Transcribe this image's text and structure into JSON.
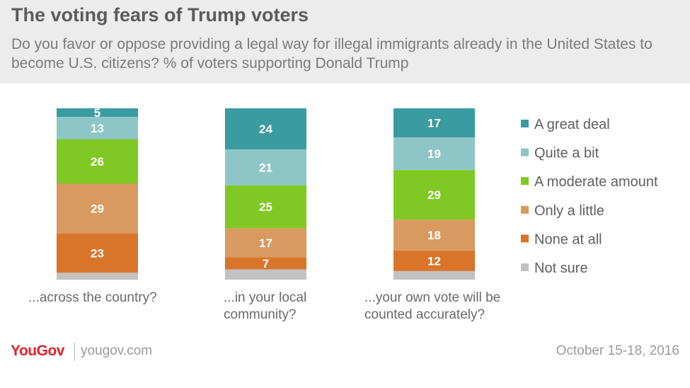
{
  "title": "The voting fears of Trump voters",
  "subtitle": "Do you favor or oppose providing a legal way for illegal immigrants already in the United States to become U.S. citizens? % of voters supporting Donald Trump",
  "colors": {
    "A great deal": "#3a9ba0",
    "Quite a bit": "#8ec6c8",
    "A moderate amount": "#80c824",
    "Only a little": "#d99a5f",
    "None at all": "#d9752a",
    "Not sure": "#c2c2c2"
  },
  "chart_data": {
    "type": "bar",
    "stacked": true,
    "categories": [
      "...across the country?",
      "...in your local community?",
      "...your own vote will be counted accurately?"
    ],
    "series": [
      {
        "name": "A great deal",
        "values": [
          5,
          24,
          17
        ]
      },
      {
        "name": "Quite a bit",
        "values": [
          13,
          21,
          19
        ]
      },
      {
        "name": "A moderate amount",
        "values": [
          26,
          25,
          29
        ]
      },
      {
        "name": "Only a little",
        "values": [
          29,
          17,
          18
        ]
      },
      {
        "name": "None at all",
        "values": [
          23,
          7,
          12
        ]
      },
      {
        "name": "Not sure",
        "values": [
          4,
          6,
          5
        ]
      }
    ],
    "data_labels": [
      [
        "5",
        "24",
        "17"
      ],
      [
        "13",
        "21",
        "19"
      ],
      [
        "26",
        "25",
        "29"
      ],
      [
        "29",
        "17",
        "18"
      ],
      [
        "23",
        "7",
        "12"
      ],
      [
        "",
        "",
        ""
      ]
    ],
    "legend_position": "right",
    "ylim": [
      0,
      100
    ]
  },
  "categories_display": [
    {
      "lines": [
        "...across the country?"
      ]
    },
    {
      "lines": [
        "...in your local",
        "community?"
      ]
    },
    {
      "lines": [
        "...your own vote will be",
        "counted accurately?"
      ]
    }
  ],
  "footer": {
    "logo": "YouGov",
    "url": "yougov.com",
    "date": "October 15-18, 2016"
  }
}
